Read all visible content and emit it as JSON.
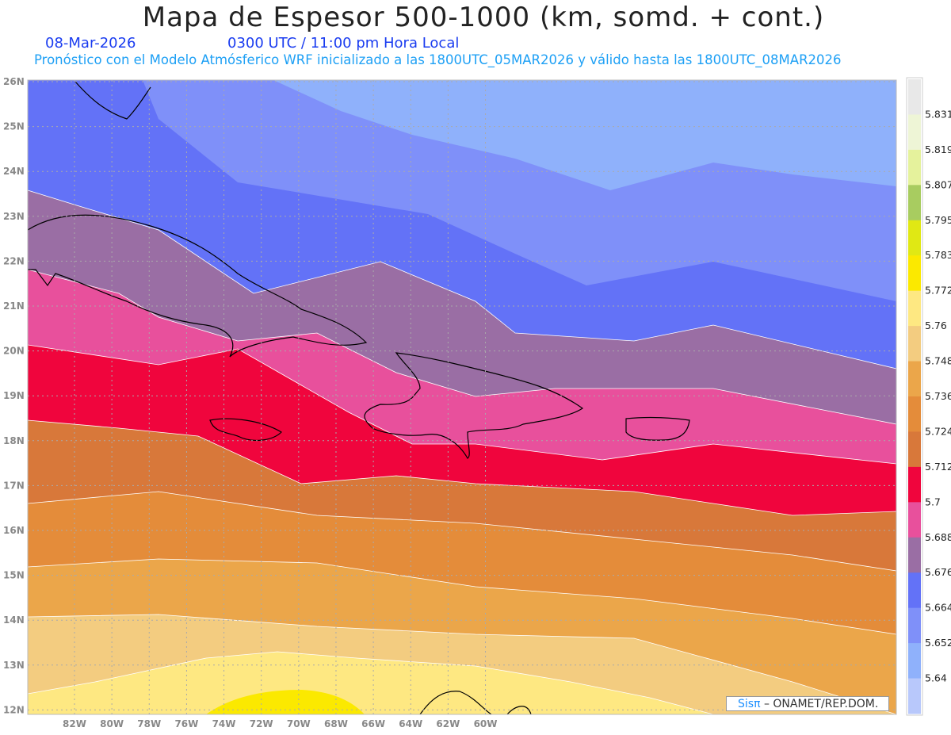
{
  "header": {
    "title": "Mapa de Espesor 500-1000 (km, somd. + cont.)",
    "date": "08-Mar-2026",
    "time": "0300 UTC / 11:00 pm Hora Local",
    "subtitle": "Pronóstico con el Modelo Atmósferico WRF inicializado a las 1800UTC_05MAR2026 y válido hasta las  1800UTC_08MAR2026"
  },
  "axes": {
    "lat_labels": [
      "26N",
      "25N",
      "24N",
      "23N",
      "22N",
      "21N",
      "20N",
      "19N",
      "18N",
      "17N",
      "16N",
      "15N",
      "14N",
      "13N",
      "12N"
    ],
    "lon_labels": [
      "82W",
      "80W",
      "78W",
      "76W",
      "74W",
      "72W",
      "70W",
      "68W",
      "66W",
      "64W",
      "62W",
      "60W"
    ]
  },
  "colorbar": {
    "labels": [
      "5.831",
      "5.819",
      "5.807",
      "5.795",
      "5.783",
      "5.772",
      "5.76",
      "5.748",
      "5.736",
      "5.724",
      "5.712",
      "5.7",
      "5.688",
      "5.676",
      "5.664",
      "5.652",
      "5.64"
    ],
    "colors": [
      "#e8e8e8",
      "#eef5d6",
      "#e5f29c",
      "#a8cc60",
      "#e0e814",
      "#fbe900",
      "#fee882",
      "#f3cc80",
      "#eba64a",
      "#e48c3a",
      "#d8783a",
      "#f0053d",
      "#e8509c",
      "#9a6ea4",
      "#6372f7",
      "#7f90f9",
      "#8fb1fb",
      "#b8c8fb"
    ]
  },
  "footer": {
    "brand": "Sisπ",
    "sep": " – ",
    "org": "ONAMET/REP.DOM."
  }
}
